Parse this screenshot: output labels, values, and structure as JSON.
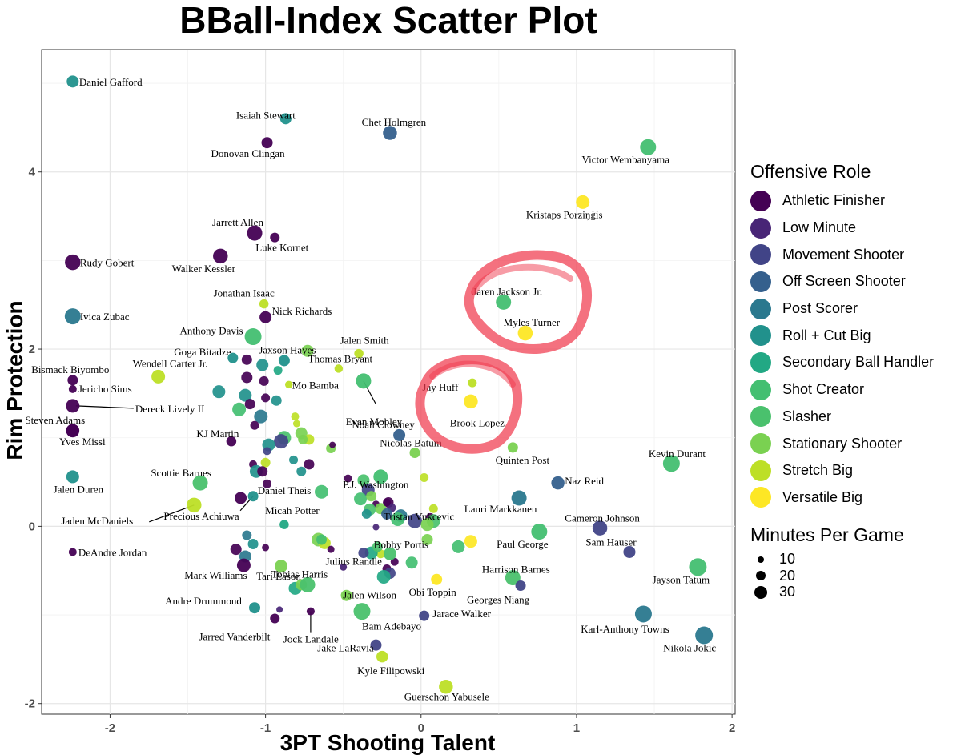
{
  "chart_data": {
    "type": "scatter",
    "title": "BBall-Index Scatter Plot",
    "xlabel": "3PT Shooting Talent",
    "ylabel": "Rim Protection",
    "xlim": [
      -2.44,
      2.02
    ],
    "ylim": [
      -2.12,
      5.38
    ],
    "x_ticks": [
      -2,
      -1,
      0,
      1,
      2
    ],
    "y_ticks": [
      -2,
      0,
      2,
      4
    ],
    "grid": true,
    "legend_color": {
      "title": "Offensive Role",
      "position": "right",
      "entries": [
        {
          "name": "Athletic Finisher",
          "color": "#440154"
        },
        {
          "name": "Low Minute",
          "color": "#482576"
        },
        {
          "name": "Movement Shooter",
          "color": "#414487"
        },
        {
          "name": "Off Screen Shooter",
          "color": "#35608d"
        },
        {
          "name": "Post Scorer",
          "color": "#2a788e"
        },
        {
          "name": "Roll + Cut Big",
          "color": "#21918c"
        },
        {
          "name": "Secondary Ball Handler",
          "color": "#22a884"
        },
        {
          "name": "Shot Creator",
          "color": "#43bf71"
        },
        {
          "name": "Slasher",
          "color": "#4ac16d"
        },
        {
          "name": "Stationary Shooter",
          "color": "#7ad151"
        },
        {
          "name": "Stretch Big",
          "color": "#bddf26"
        },
        {
          "name": "Versatile Big",
          "color": "#fde725"
        }
      ]
    },
    "legend_size": {
      "title": "Minutes Per Game",
      "entries": [
        {
          "label": "10",
          "value": 10
        },
        {
          "label": "20",
          "value": 20
        },
        {
          "label": "30",
          "value": 30
        }
      ]
    },
    "labeled_points": [
      {
        "name": "Daniel Gafford",
        "x": -2.24,
        "y": 5.02,
        "role": "Roll + Cut Big",
        "mpg": 22
      },
      {
        "name": "Isaiah Stewart",
        "x": -0.87,
        "y": 4.6,
        "role": "Roll + Cut Big",
        "mpg": 20
      },
      {
        "name": "Donovan Clingan",
        "x": -0.99,
        "y": 4.33,
        "role": "Athletic Finisher",
        "mpg": 20
      },
      {
        "name": "Chet Holmgren",
        "x": -0.2,
        "y": 4.44,
        "role": "Off Screen Shooter",
        "mpg": 27
      },
      {
        "name": "Victor Wembanyama",
        "x": 1.46,
        "y": 4.28,
        "role": "Shot Creator",
        "mpg": 32
      },
      {
        "name": "Kristaps Porziņģis",
        "x": 1.04,
        "y": 3.66,
        "role": "Versatile Big",
        "mpg": 26
      },
      {
        "name": "Jarrett Allen",
        "x": -1.07,
        "y": 3.31,
        "role": "Athletic Finisher",
        "mpg": 30
      },
      {
        "name": "Luke Kornet",
        "x": -0.94,
        "y": 3.26,
        "role": "Athletic Finisher",
        "mpg": 16
      },
      {
        "name": "Rudy Gobert",
        "x": -2.24,
        "y": 2.98,
        "role": "Athletic Finisher",
        "mpg": 31
      },
      {
        "name": "Walker Kessler",
        "x": -1.29,
        "y": 3.05,
        "role": "Athletic Finisher",
        "mpg": 29
      },
      {
        "name": "Ivica Zubac",
        "x": -2.24,
        "y": 2.37,
        "role": "Post Scorer",
        "mpg": 32
      },
      {
        "name": "Jonathan Isaac",
        "x": -1.01,
        "y": 2.51,
        "role": "Stretch Big",
        "mpg": 15
      },
      {
        "name": "Nick Richards",
        "x": -1.0,
        "y": 2.36,
        "role": "Athletic Finisher",
        "mpg": 22
      },
      {
        "name": "Anthony Davis",
        "x": -1.08,
        "y": 2.14,
        "role": "Shot Creator",
        "mpg": 34
      },
      {
        "name": "Jaren Jackson Jr.",
        "x": 0.53,
        "y": 2.53,
        "role": "Shot Creator",
        "mpg": 30
      },
      {
        "name": "Myles Turner",
        "x": 0.67,
        "y": 2.18,
        "role": "Versatile Big",
        "mpg": 29
      },
      {
        "name": "Goga Bitadze",
        "x": -1.21,
        "y": 1.9,
        "role": "Roll + Cut Big",
        "mpg": 18
      },
      {
        "name": "Jaxson Hayes",
        "x": -0.88,
        "y": 1.87,
        "role": "Roll + Cut Big",
        "mpg": 20
      },
      {
        "name": "Jalen Smith",
        "x": -0.4,
        "y": 1.95,
        "role": "Stretch Big",
        "mpg": 15
      },
      {
        "name": "Thomas Bryant",
        "x": -0.53,
        "y": 1.78,
        "role": "Stretch Big",
        "mpg": 13
      },
      {
        "name": "Bismack Biyombo",
        "x": -2.24,
        "y": 1.65,
        "role": "Athletic Finisher",
        "mpg": 18
      },
      {
        "name": "Wendell Carter Jr.",
        "x": -1.69,
        "y": 1.69,
        "role": "Stretch Big",
        "mpg": 26
      },
      {
        "name": "Jericho Sims",
        "x": -2.24,
        "y": 1.55,
        "role": "Athletic Finisher",
        "mpg": 12
      },
      {
        "name": "Mo Bamba",
        "x": -0.85,
        "y": 1.6,
        "role": "Stretch Big",
        "mpg": 11
      },
      {
        "name": "Evan Mobley",
        "x": -0.37,
        "y": 1.64,
        "role": "Shot Creator",
        "mpg": 30
      },
      {
        "name": "Dereck Lively II",
        "x": -2.24,
        "y": 1.36,
        "role": "Athletic Finisher",
        "mpg": 26
      },
      {
        "name": "Jay Huff",
        "x": 0.33,
        "y": 1.62,
        "role": "Stretch Big",
        "mpg": 14
      },
      {
        "name": "Brook Lopez",
        "x": 0.32,
        "y": 1.41,
        "role": "Versatile Big",
        "mpg": 27
      },
      {
        "name": "Steven Adams",
        "x": -2.24,
        "y": 1.08,
        "role": "Athletic Finisher",
        "mpg": 25
      },
      {
        "name": "KJ Martin",
        "x": -1.22,
        "y": 0.96,
        "role": "Athletic Finisher",
        "mpg": 17
      },
      {
        "name": "Noah Clowney",
        "x": -0.14,
        "y": 1.03,
        "role": "Off Screen Shooter",
        "mpg": 22
      },
      {
        "name": "Yves Missi",
        "x": -2.24,
        "y": 1.08,
        "role": "Athletic Finisher",
        "mpg": 25
      },
      {
        "name": "Nicolas Batum",
        "x": -0.04,
        "y": 0.83,
        "role": "Stationary Shooter",
        "mpg": 18
      },
      {
        "name": "Quinten Post",
        "x": 0.59,
        "y": 0.89,
        "role": "Stationary Shooter",
        "mpg": 18
      },
      {
        "name": "Kevin Durant",
        "x": 1.61,
        "y": 0.71,
        "role": "Shot Creator",
        "mpg": 34
      },
      {
        "name": "Scottie Barnes",
        "x": -1.42,
        "y": 0.49,
        "role": "Slasher",
        "mpg": 30
      },
      {
        "name": "Jalen Duren",
        "x": -2.24,
        "y": 0.56,
        "role": "Roll + Cut Big",
        "mpg": 24
      },
      {
        "name": "P.J. Washington",
        "x": -0.26,
        "y": 0.56,
        "role": "Shot Creator",
        "mpg": 28
      },
      {
        "name": "Naz Reid",
        "x": 0.88,
        "y": 0.49,
        "role": "Off Screen Shooter",
        "mpg": 25
      },
      {
        "name": "Daniel Theis",
        "x": -1.08,
        "y": 0.34,
        "role": "Roll + Cut Big",
        "mpg": 18
      },
      {
        "name": "Tristan Vukcevic",
        "x": -0.22,
        "y": 0.27,
        "role": "Athletic Finisher",
        "mpg": 12
      },
      {
        "name": "Jaden McDaniels",
        "x": -1.46,
        "y": 0.24,
        "role": "Stretch Big",
        "mpg": 29
      },
      {
        "name": "Precious Achiuwa",
        "x": -1.16,
        "y": 0.32,
        "role": "Athletic Finisher",
        "mpg": 22
      },
      {
        "name": "Lauri Markkanen",
        "x": 0.63,
        "y": 0.32,
        "role": "Post Scorer",
        "mpg": 30
      },
      {
        "name": "Micah Potter",
        "x": -0.88,
        "y": 0.02,
        "role": "Secondary Ball Handler",
        "mpg": 15
      },
      {
        "name": "Cameron Johnson",
        "x": 1.15,
        "y": -0.02,
        "role": "Movement Shooter",
        "mpg": 29
      },
      {
        "name": "Paul George",
        "x": 0.76,
        "y": -0.06,
        "role": "Shot Creator",
        "mpg": 32
      },
      {
        "name": "Sam Hauser",
        "x": 1.34,
        "y": -0.29,
        "role": "Movement Shooter",
        "mpg": 22
      },
      {
        "name": "DeAndre Jordan",
        "x": -2.24,
        "y": -0.29,
        "role": "Athletic Finisher",
        "mpg": 12
      },
      {
        "name": "Julius Randle",
        "x": -0.5,
        "y": -0.46,
        "role": "Low Minute",
        "mpg": 10
      },
      {
        "name": "Bobby Portis",
        "x": -0.2,
        "y": -0.31,
        "role": "Slasher",
        "mpg": 24
      },
      {
        "name": "Harrison Barnes",
        "x": 0.59,
        "y": -0.58,
        "role": "Slasher",
        "mpg": 30
      },
      {
        "name": "Jayson Tatum",
        "x": 1.78,
        "y": -0.46,
        "role": "Shot Creator",
        "mpg": 36
      },
      {
        "name": "Mark Williams",
        "x": -1.14,
        "y": -0.44,
        "role": "Athletic Finisher",
        "mpg": 26
      },
      {
        "name": "Tari Eason",
        "x": -0.9,
        "y": -0.45,
        "role": "Stationary Shooter",
        "mpg": 24
      },
      {
        "name": "Obi Toppin",
        "x": 0.1,
        "y": -0.6,
        "role": "Versatile Big",
        "mpg": 20
      },
      {
        "name": "Georges Niang",
        "x": 0.64,
        "y": -0.67,
        "role": "Movement Shooter",
        "mpg": 18
      },
      {
        "name": "Jalen Wilson",
        "x": -0.48,
        "y": -0.78,
        "role": "Stationary Shooter",
        "mpg": 20
      },
      {
        "name": "Tobias Harris",
        "x": -0.73,
        "y": -0.66,
        "role": "Slasher",
        "mpg": 30
      },
      {
        "name": "Andre Drummond",
        "x": -1.07,
        "y": -0.92,
        "role": "Roll + Cut Big",
        "mpg": 20
      },
      {
        "name": "Jarace Walker",
        "x": 0.02,
        "y": -1.01,
        "role": "Movement Shooter",
        "mpg": 18
      },
      {
        "name": "Karl-Anthony Towns",
        "x": 1.43,
        "y": -0.99,
        "role": "Post Scorer",
        "mpg": 34
      },
      {
        "name": "Jock Landale",
        "x": -0.94,
        "y": -1.04,
        "role": "Athletic Finisher",
        "mpg": 16
      },
      {
        "name": "Jarred Vanderbilt",
        "x": -0.71,
        "y": -0.96,
        "role": "Athletic Finisher",
        "mpg": 12
      },
      {
        "name": "Bam Adebayo",
        "x": -0.38,
        "y": -0.96,
        "role": "Slasher",
        "mpg": 34
      },
      {
        "name": "Nikola Jokić",
        "x": 1.82,
        "y": -1.23,
        "role": "Post Scorer",
        "mpg": 36
      },
      {
        "name": "Jake LaRavia",
        "x": -0.29,
        "y": -1.34,
        "role": "Movement Shooter",
        "mpg": 20
      },
      {
        "name": "Kyle Filipowski",
        "x": -0.25,
        "y": -1.47,
        "role": "Stretch Big",
        "mpg": 21
      },
      {
        "name": "Guerschon Yabusele",
        "x": 0.16,
        "y": -1.81,
        "role": "Stretch Big",
        "mpg": 27
      }
    ],
    "unlabeled_points": [
      [
        -0.73,
        1.98,
        "Stationary Shooter",
        22
      ],
      [
        -1.12,
        1.88,
        "Athletic Finisher",
        18
      ],
      [
        -1.02,
        1.82,
        "Roll + Cut Big",
        22
      ],
      [
        -0.92,
        1.76,
        "Secondary Ball Handler",
        14
      ],
      [
        -1.12,
        1.68,
        "Athletic Finisher",
        20
      ],
      [
        -1.01,
        1.64,
        "Athletic Finisher",
        16
      ],
      [
        -1.3,
        1.52,
        "Roll + Cut Big",
        24
      ],
      [
        -1.13,
        1.48,
        "Roll + Cut Big",
        24
      ],
      [
        -1.0,
        1.45,
        "Athletic Finisher",
        14
      ],
      [
        -0.93,
        1.42,
        "Roll + Cut Big",
        18
      ],
      [
        -1.1,
        1.38,
        "Athletic Finisher",
        18
      ],
      [
        -1.17,
        1.32,
        "Shot Creator",
        26
      ],
      [
        -1.03,
        1.24,
        "Post Scorer",
        26
      ],
      [
        -0.81,
        1.24,
        "Stretch Big",
        12
      ],
      [
        -0.8,
        1.16,
        "Stretch Big",
        10
      ],
      [
        -1.07,
        1.14,
        "Athletic Finisher",
        14
      ],
      [
        -0.77,
        1.05,
        "Stationary Shooter",
        22
      ],
      [
        -0.88,
        1.0,
        "Slasher",
        26
      ],
      [
        -0.9,
        0.96,
        "Movement Shooter",
        28
      ],
      [
        -0.72,
        0.98,
        "Stretch Big",
        18
      ],
      [
        -0.76,
        0.98,
        "Stationary Shooter",
        16
      ],
      [
        -0.98,
        0.92,
        "Roll + Cut Big",
        24
      ],
      [
        -0.58,
        0.88,
        "Stationary Shooter",
        16
      ],
      [
        -0.57,
        0.92,
        "Athletic Finisher",
        8
      ],
      [
        -0.99,
        0.85,
        "Movement Shooter",
        12
      ],
      [
        -0.82,
        0.75,
        "Roll + Cut Big",
        14
      ],
      [
        -1.08,
        0.7,
        "Athletic Finisher",
        12
      ],
      [
        -0.72,
        0.7,
        "Athletic Finisher",
        18
      ],
      [
        -1.0,
        0.72,
        "Stretch Big",
        16
      ],
      [
        -1.06,
        0.62,
        "Roll + Cut Big",
        24
      ],
      [
        -1.02,
        0.62,
        "Athletic Finisher",
        18
      ],
      [
        -0.77,
        0.62,
        "Roll + Cut Big",
        16
      ],
      [
        -0.47,
        0.54,
        "Athletic Finisher",
        12
      ],
      [
        -0.37,
        0.52,
        "Slasher",
        22
      ],
      [
        -0.34,
        0.41,
        "Movement Shooter",
        24
      ],
      [
        -0.99,
        0.48,
        "Athletic Finisher",
        14
      ],
      [
        -0.64,
        0.39,
        "Shot Creator",
        26
      ],
      [
        -0.39,
        0.31,
        "Shot Creator",
        24
      ],
      [
        -0.32,
        0.34,
        "Stationary Shooter",
        18
      ],
      [
        -0.29,
        0.25,
        "Athletic Finisher",
        10
      ],
      [
        -0.21,
        0.27,
        "Athletic Finisher",
        18
      ],
      [
        -0.33,
        0.19,
        "Slasher",
        22
      ],
      [
        -0.26,
        0.2,
        "Stationary Shooter",
        20
      ],
      [
        -0.19,
        0.21,
        "Low Minute",
        14
      ],
      [
        -0.22,
        0.14,
        "Off Screen Shooter",
        20
      ],
      [
        -0.35,
        0.14,
        "Roll + Cut Big",
        16
      ],
      [
        -0.13,
        0.12,
        "Post Scorer",
        24
      ],
      [
        -0.15,
        0.08,
        "Shot Creator",
        26
      ],
      [
        -0.04,
        0.06,
        "Movement Shooter",
        28
      ],
      [
        0.06,
        0.1,
        "Athletic Finisher",
        14
      ],
      [
        0.08,
        0.06,
        "Slasher",
        26
      ],
      [
        0.04,
        0.02,
        "Stationary Shooter",
        24
      ],
      [
        0.08,
        0.2,
        "Stretch Big",
        14
      ],
      [
        -0.29,
        -0.01,
        "Low Minute",
        8
      ],
      [
        0.04,
        -0.15,
        "Stationary Shooter",
        20
      ],
      [
        0.24,
        -0.23,
        "Shot Creator",
        24
      ],
      [
        0.32,
        -0.17,
        "Versatile Big",
        24
      ],
      [
        -0.66,
        -0.15,
        "Stationary Shooter",
        26
      ],
      [
        -0.62,
        -0.19,
        "Stretch Big",
        22
      ],
      [
        -0.64,
        -0.15,
        "Shot Creator",
        18
      ],
      [
        -1.08,
        -0.2,
        "Roll + Cut Big",
        18
      ],
      [
        -1.12,
        -0.1,
        "Post Scorer",
        16
      ],
      [
        -1.0,
        -0.24,
        "Athletic Finisher",
        10
      ],
      [
        -0.58,
        -0.26,
        "Athletic Finisher",
        10
      ],
      [
        -0.26,
        -0.31,
        "Stretch Big",
        14
      ],
      [
        -0.32,
        -0.3,
        "Secondary Ball Handler",
        24
      ],
      [
        -0.37,
        -0.3,
        "Movement Shooter",
        18
      ],
      [
        -0.06,
        -0.41,
        "Shot Creator",
        22
      ],
      [
        -0.17,
        -0.4,
        "Athletic Finisher",
        12
      ],
      [
        -0.22,
        -0.48,
        "Athletic Finisher",
        14
      ],
      [
        -0.2,
        -0.53,
        "Movement Shooter",
        20
      ],
      [
        -1.13,
        -0.34,
        "Post Scorer",
        22
      ],
      [
        -1.19,
        -0.26,
        "Athletic Finisher",
        20
      ],
      [
        -0.81,
        -0.7,
        "Secondary Ball Handler",
        24
      ],
      [
        -0.77,
        -0.66,
        "Stationary Shooter",
        20
      ],
      [
        -0.91,
        -0.94,
        "Low Minute",
        8
      ],
      [
        -0.28,
        -0.23,
        "Slasher",
        18
      ],
      [
        0.02,
        0.55,
        "Stretch Big",
        14
      ],
      [
        -0.24,
        -0.57,
        "Secondary Ball Handler",
        26
      ]
    ]
  }
}
